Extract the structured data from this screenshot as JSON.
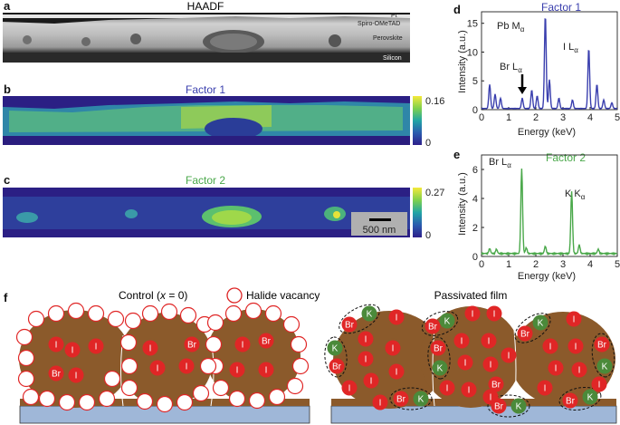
{
  "panel_a": {
    "letter": "a",
    "title": "HAADF",
    "layer_labels": [
      "Pt",
      "Spiro-OMeTAD",
      "Perovskite",
      "Silicon"
    ]
  },
  "panel_b": {
    "letter": "b",
    "title": "Factor 1",
    "colorbar_max": "0.16",
    "colorbar_min": "0"
  },
  "panel_c": {
    "letter": "c",
    "title": "Factor 2",
    "colorbar_max": "0.27",
    "colorbar_min": "0",
    "scalebar": "500 nm"
  },
  "panel_f": {
    "letter": "f",
    "control_label": "Control (x = 0)",
    "control_label_pre": "Control (",
    "control_label_var": "x",
    "control_label_post": " = 0)",
    "legend_label": "Halide vacancy",
    "passivated_label": "Passivated film"
  },
  "ion_labels": {
    "iodide": "I",
    "bromide": "Br",
    "potassium": "K"
  },
  "colors": {
    "factor1": "#3a3fae",
    "factor2": "#4aa84a",
    "grain": "#8b5a2b",
    "ion_red": "#e02626",
    "potassium": "#4b8a3a",
    "substrate": "#9fb7d8"
  },
  "chart_data": [
    {
      "panel": "d",
      "type": "line",
      "title": "Factor 1",
      "xlabel": "Energy (keV)",
      "ylabel": "Intensity (a.u.)",
      "xlim": [
        0,
        5
      ],
      "ylim": [
        0,
        17
      ],
      "xticks": [
        0,
        1,
        2,
        3,
        4,
        5
      ],
      "yticks": [
        0,
        5,
        10,
        15
      ],
      "annotations": [
        {
          "label": "Pb M",
          "sub": "α",
          "x": 2.3
        },
        {
          "label": "I L",
          "sub": "α",
          "x": 3.95
        },
        {
          "label": "Br L",
          "sub": "α",
          "x": 1.5
        }
      ],
      "peaks": [
        {
          "x": 0.3,
          "y": 4.2
        },
        {
          "x": 0.5,
          "y": 2.5
        },
        {
          "x": 0.7,
          "y": 1.8
        },
        {
          "x": 1.5,
          "y": 1.8
        },
        {
          "x": 1.85,
          "y": 3.2
        },
        {
          "x": 2.05,
          "y": 2.2
        },
        {
          "x": 2.35,
          "y": 16.3
        },
        {
          "x": 2.5,
          "y": 5.0
        },
        {
          "x": 2.85,
          "y": 1.8
        },
        {
          "x": 3.35,
          "y": 1.5
        },
        {
          "x": 3.95,
          "y": 10.5
        },
        {
          "x": 4.25,
          "y": 4.2
        },
        {
          "x": 4.5,
          "y": 1.5
        },
        {
          "x": 4.8,
          "y": 1.0
        }
      ]
    },
    {
      "panel": "e",
      "type": "line",
      "title": "Factor 2",
      "xlabel": "Energy (keV)",
      "ylabel": "Intensity (a.u.)",
      "xlim": [
        0,
        5
      ],
      "ylim": [
        0,
        7
      ],
      "xticks": [
        0,
        1,
        2,
        3,
        4,
        5
      ],
      "yticks": [
        0,
        2,
        4,
        6
      ],
      "annotations": [
        {
          "label": "Br L",
          "sub": "α",
          "x": 1.48
        },
        {
          "label": "K K",
          "sub": "α",
          "x": 3.32
        }
      ],
      "peaks": [
        {
          "x": 0.3,
          "y": 0.35
        },
        {
          "x": 0.55,
          "y": 0.3
        },
        {
          "x": 1.48,
          "y": 5.9
        },
        {
          "x": 1.65,
          "y": 0.4
        },
        {
          "x": 2.35,
          "y": 0.5
        },
        {
          "x": 3.32,
          "y": 4.3
        },
        {
          "x": 3.6,
          "y": 0.6
        },
        {
          "x": 4.3,
          "y": 0.3
        }
      ]
    }
  ]
}
